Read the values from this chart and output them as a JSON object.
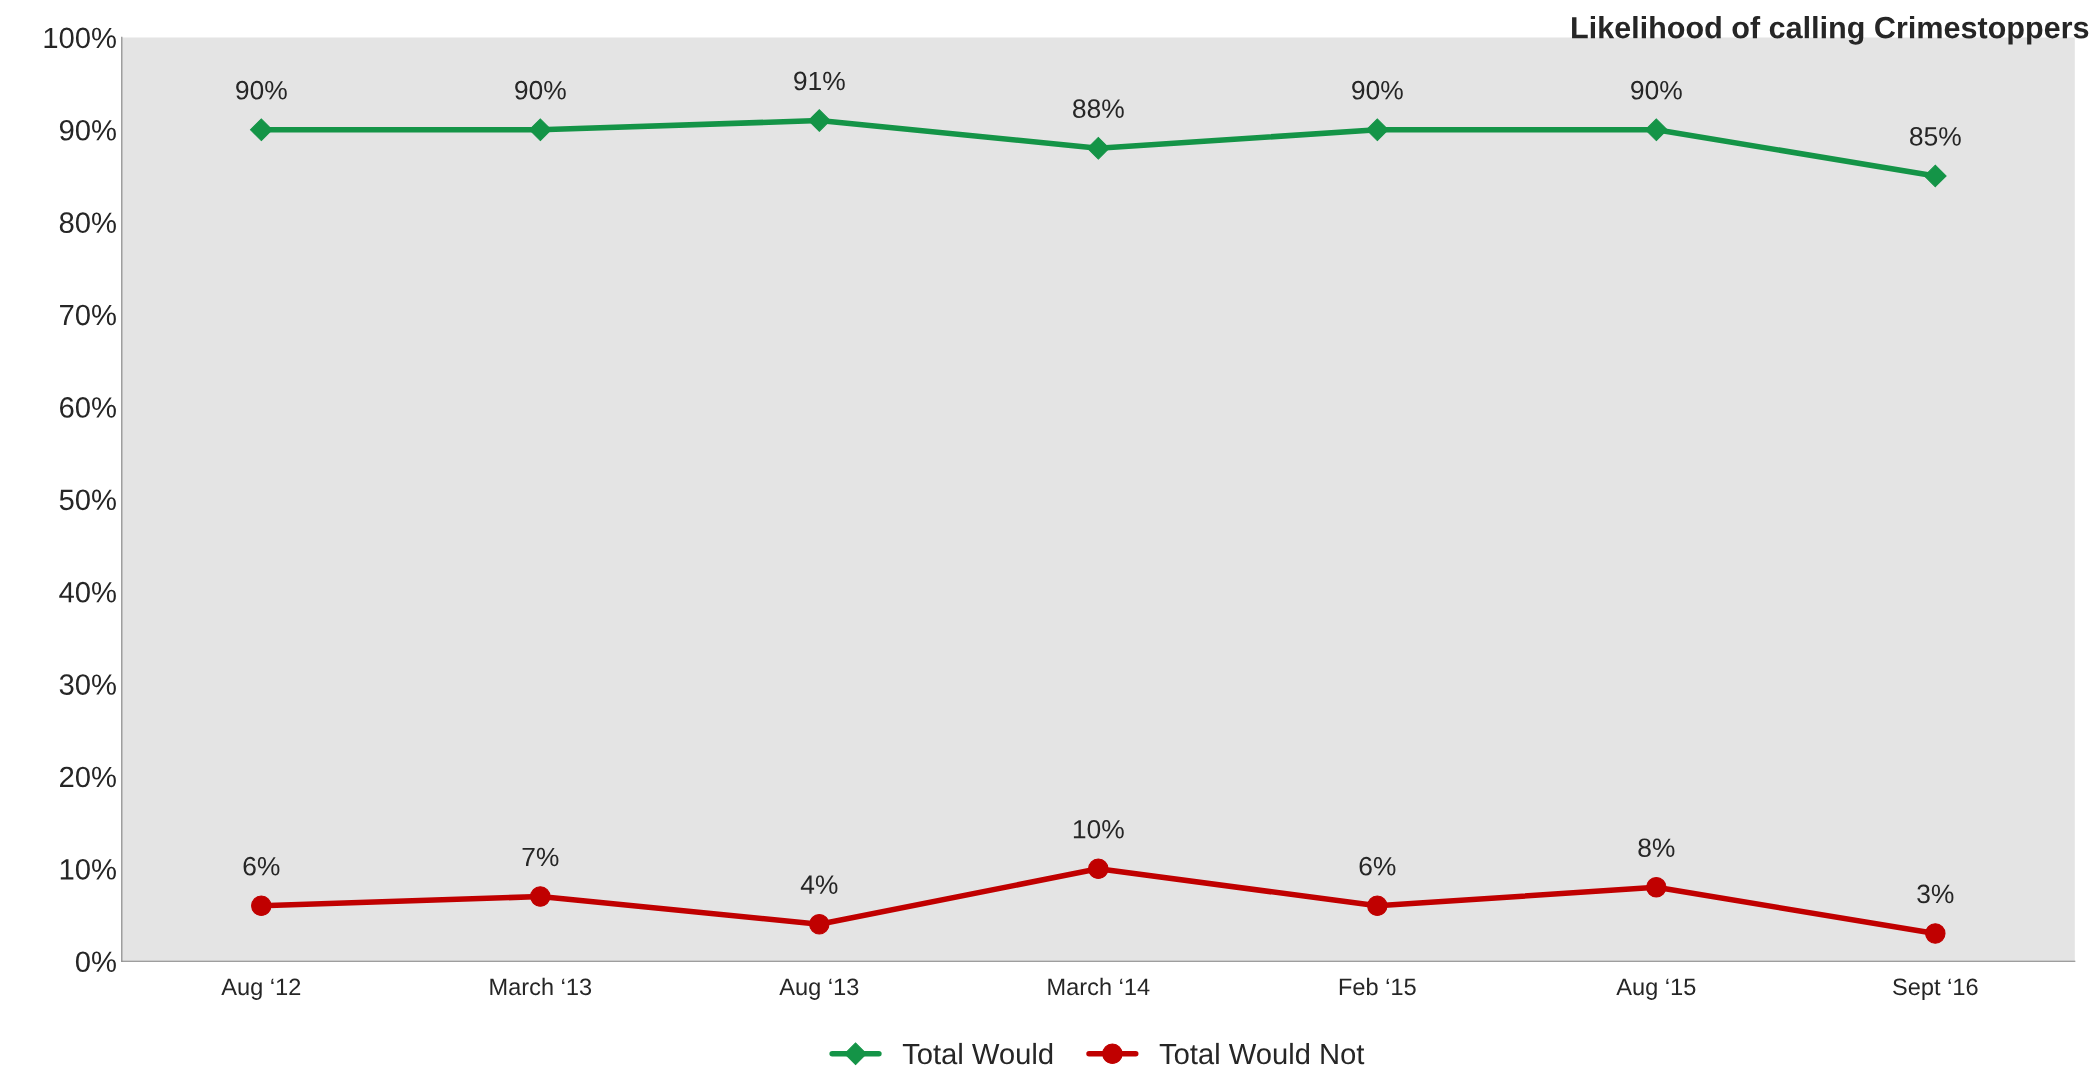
{
  "chart_data": {
    "type": "line",
    "title": "Likelihood of calling Crimestoppers",
    "categories": [
      "Aug ‘12",
      "March ‘13",
      "Aug ‘13",
      "March ‘14",
      "Feb ‘15",
      "Aug ‘15",
      "Sept ‘16"
    ],
    "series": [
      {
        "name": "Total Would",
        "color": "#149447",
        "marker": "diamond",
        "values": [
          90,
          90,
          91,
          88,
          90,
          90,
          85
        ],
        "value_labels": [
          "90%",
          "90%",
          "91%",
          "88%",
          "90%",
          "90%",
          "85%"
        ]
      },
      {
        "name": "Total Would Not",
        "color": "#c00000",
        "marker": "circle",
        "values": [
          6,
          7,
          4,
          10,
          6,
          8,
          3
        ],
        "value_labels": [
          "6%",
          "7%",
          "4%",
          "10%",
          "6%",
          "8%",
          "3%"
        ]
      }
    ],
    "ylim": [
      0,
      100
    ],
    "yticks": [
      {
        "value": 0,
        "label": "0%"
      },
      {
        "value": 10,
        "label": "10%"
      },
      {
        "value": 20,
        "label": "20%"
      },
      {
        "value": 30,
        "label": "30%"
      },
      {
        "value": 40,
        "label": "40%"
      },
      {
        "value": 50,
        "label": "50%"
      },
      {
        "value": 60,
        "label": "60%"
      },
      {
        "value": 70,
        "label": "70%"
      },
      {
        "value": 80,
        "label": "80%"
      },
      {
        "value": 90,
        "label": "90%"
      },
      {
        "value": 100,
        "label": "100%"
      }
    ],
    "grid": false,
    "legend": "bottom",
    "line_style": "solid"
  }
}
